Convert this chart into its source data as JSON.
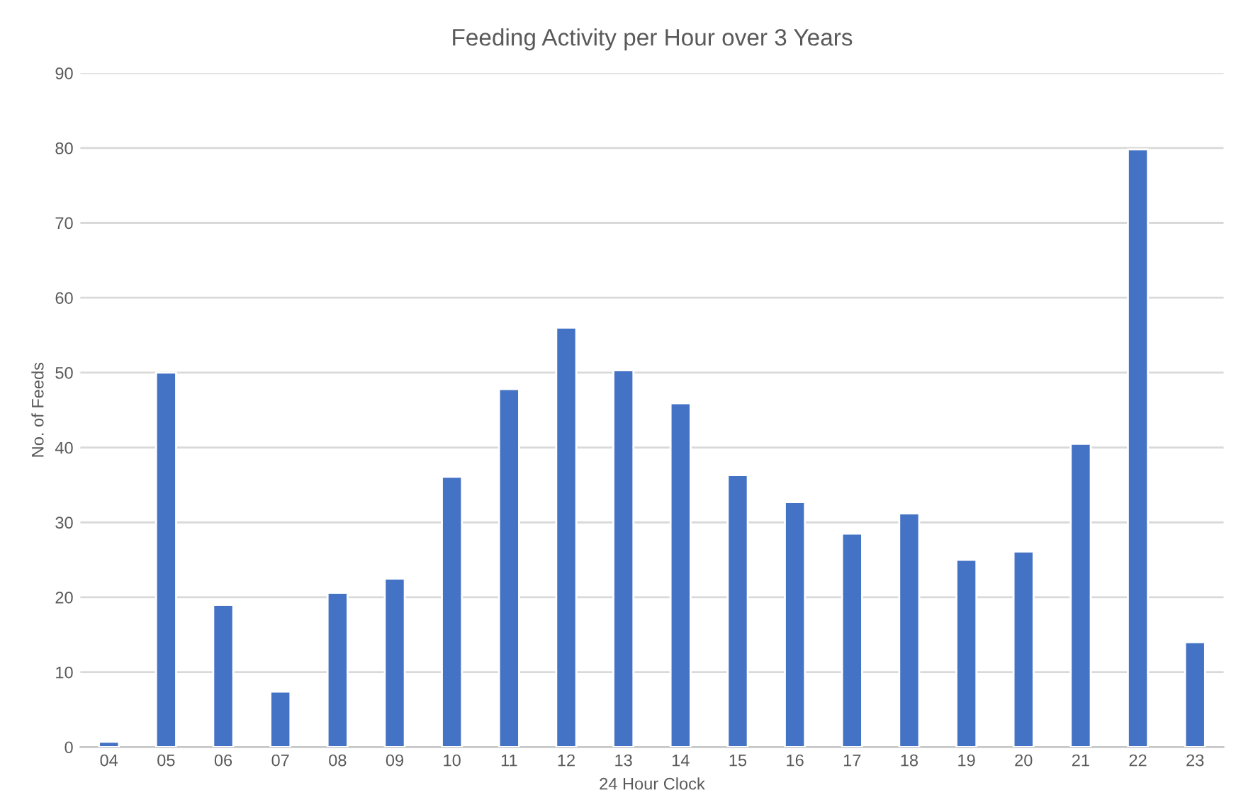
{
  "chart_data": {
    "type": "bar",
    "title": "Feeding Activity per Hour over 3 Years",
    "xlabel": "24 Hour Clock",
    "ylabel": "No. of Feeds",
    "categories": [
      "04",
      "05",
      "06",
      "07",
      "08",
      "09",
      "10",
      "11",
      "12",
      "13",
      "14",
      "15",
      "16",
      "17",
      "18",
      "19",
      "20",
      "21",
      "22",
      "23"
    ],
    "values": [
      0.7,
      50,
      19,
      7.4,
      20.6,
      22.5,
      36.1,
      47.8,
      56,
      50.3,
      45.9,
      36.3,
      32.7,
      28.5,
      31.2,
      25,
      26.1,
      40.5,
      79.8,
      14
    ],
    "color": "#4472c4",
    "ylim": [
      0,
      90
    ],
    "yticks": [
      0,
      10,
      20,
      30,
      40,
      50,
      60,
      70,
      80,
      90
    ],
    "grid": "y",
    "legend": false
  }
}
